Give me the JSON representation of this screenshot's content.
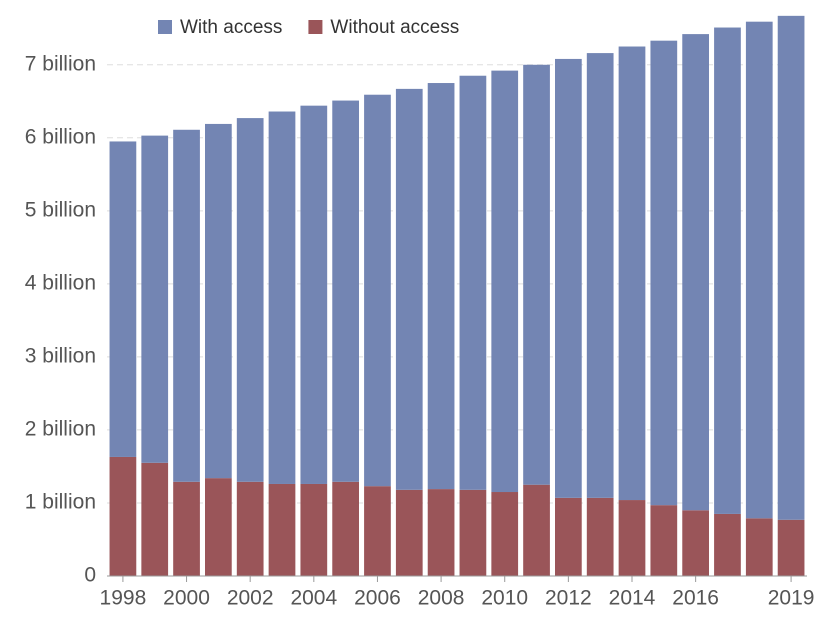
{
  "chart_data": {
    "type": "stacked-bar",
    "categories": [
      "1998",
      null,
      "2000",
      null,
      "2002",
      null,
      "2004",
      null,
      "2006",
      null,
      "2008",
      null,
      "2010",
      null,
      "2012",
      null,
      "2014",
      null,
      "2016",
      null,
      null,
      "2019"
    ],
    "series": [
      {
        "name": "With access",
        "color": "#7385b3",
        "values": [
          4.32,
          4.48,
          4.82,
          4.85,
          4.98,
          5.1,
          5.18,
          5.22,
          5.36,
          5.49,
          5.56,
          5.67,
          5.77,
          5.75,
          6.01,
          6.09,
          6.21,
          6.36,
          6.52,
          6.66,
          6.8,
          6.9
        ]
      },
      {
        "name": "Without access",
        "color": "#9a5559",
        "values": [
          1.63,
          1.55,
          1.29,
          1.34,
          1.29,
          1.26,
          1.26,
          1.29,
          1.23,
          1.18,
          1.19,
          1.18,
          1.15,
          1.25,
          1.07,
          1.07,
          1.04,
          0.97,
          0.9,
          0.85,
          0.79,
          0.77
        ]
      }
    ],
    "ylim": [
      0,
      7.75
    ],
    "yticks": [
      0,
      {
        "value": 1,
        "label": "1 billion"
      },
      {
        "value": 2,
        "label": "2 billion"
      },
      {
        "value": 3,
        "label": "3 billion"
      },
      {
        "value": 4,
        "label": "4 billion"
      },
      {
        "value": 5,
        "label": "5 billion"
      },
      {
        "value": 6,
        "label": "6 billion"
      },
      {
        "value": 7,
        "label": "7 billion"
      }
    ],
    "grid": true
  }
}
